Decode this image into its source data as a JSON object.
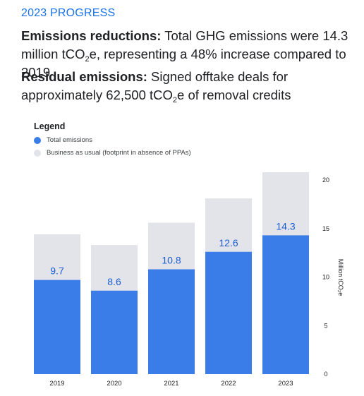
{
  "header": {
    "eyebrow": "2023 PROGRESS",
    "p1_bold": "Emissions reductions:",
    "p1_pre": " Total GHG emissions were 14.3 million tCO",
    "p1_sub": "2",
    "p1_post": "e, representing a 48% increase compared to 2019",
    "p2_bold": "Residual emissions:",
    "p2_pre": " Signed offtake deals for approximately 62,500 tCO",
    "p2_sub": "2",
    "p2_post": "e of removal credits"
  },
  "legend": {
    "title": "Legend",
    "items": [
      {
        "label": "Total emissions",
        "color": "#3b7de8"
      },
      {
        "label": "Business as usual (footprint in absence of PPAs)",
        "color": "#e3e3ea"
      }
    ]
  },
  "chart_data": {
    "type": "bar",
    "stacked_overlay": true,
    "categories": [
      "2019",
      "2020",
      "2021",
      "2022",
      "2023"
    ],
    "series": [
      {
        "name": "Total emissions",
        "values": [
          9.7,
          8.6,
          10.8,
          12.6,
          14.3
        ],
        "color": "#3b7de8"
      },
      {
        "name": "Business as usual (footprint in absence of PPAs)",
        "values": [
          14.4,
          13.3,
          15.6,
          18.1,
          20.8
        ],
        "color": "#e3e3ea"
      }
    ],
    "data_labels": [
      "9.7",
      "8.6",
      "10.8",
      "12.6",
      "14.3"
    ],
    "ylim": [
      0,
      20
    ],
    "yticks": [
      0,
      5,
      10,
      15,
      20
    ],
    "ylabel": "Million tCO₂e",
    "y_axis_position": "right",
    "grid": false,
    "legend_position": "top-left"
  }
}
